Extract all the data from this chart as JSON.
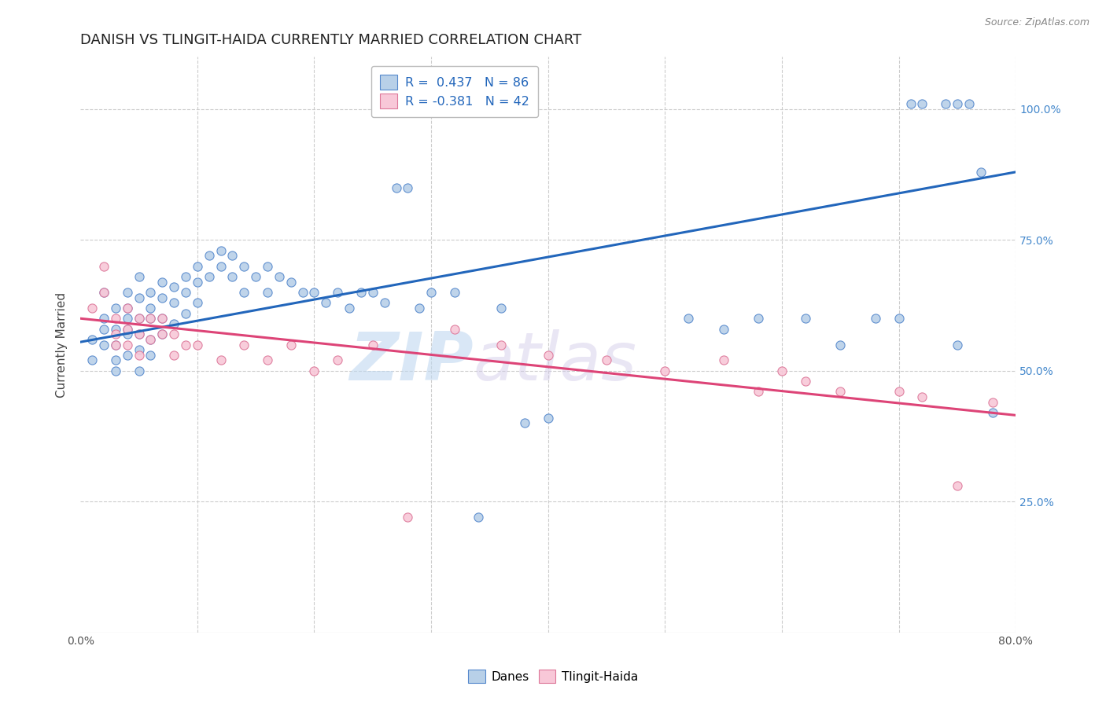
{
  "title": "DANISH VS TLINGIT-HAIDA CURRENTLY MARRIED CORRELATION CHART",
  "source": "Source: ZipAtlas.com",
  "ylabel": "Currently Married",
  "xlim": [
    0.0,
    0.8
  ],
  "ylim": [
    0.0,
    1.1
  ],
  "xticks": [
    0.0,
    0.1,
    0.2,
    0.3,
    0.4,
    0.5,
    0.6,
    0.7,
    0.8
  ],
  "xticklabels": [
    "0.0%",
    "",
    "",
    "",
    "",
    "",
    "",
    "",
    "80.0%"
  ],
  "yticks": [
    0.0,
    0.25,
    0.5,
    0.75,
    1.0
  ],
  "yticklabels_right": [
    "",
    "25.0%",
    "50.0%",
    "75.0%",
    "100.0%"
  ],
  "danes_R": 0.437,
  "danes_N": 86,
  "tlingit_R": -0.381,
  "tlingit_N": 42,
  "danes_color": "#b8d0e8",
  "danes_edge_color": "#5588cc",
  "danes_line_color": "#2266bb",
  "tlingit_color": "#f8c8d8",
  "tlingit_edge_color": "#dd7799",
  "tlingit_line_color": "#dd4477",
  "danes_x": [
    0.01,
    0.01,
    0.02,
    0.02,
    0.02,
    0.02,
    0.03,
    0.03,
    0.03,
    0.03,
    0.03,
    0.04,
    0.04,
    0.04,
    0.04,
    0.04,
    0.04,
    0.05,
    0.05,
    0.05,
    0.05,
    0.05,
    0.05,
    0.06,
    0.06,
    0.06,
    0.06,
    0.06,
    0.07,
    0.07,
    0.07,
    0.07,
    0.08,
    0.08,
    0.08,
    0.09,
    0.09,
    0.09,
    0.1,
    0.1,
    0.1,
    0.11,
    0.11,
    0.12,
    0.12,
    0.13,
    0.13,
    0.14,
    0.14,
    0.15,
    0.16,
    0.16,
    0.17,
    0.18,
    0.19,
    0.2,
    0.21,
    0.22,
    0.23,
    0.24,
    0.25,
    0.26,
    0.27,
    0.28,
    0.29,
    0.3,
    0.32,
    0.34,
    0.36,
    0.38,
    0.4,
    0.52,
    0.55,
    0.58,
    0.62,
    0.65,
    0.68,
    0.7,
    0.71,
    0.72,
    0.74,
    0.75,
    0.75,
    0.76,
    0.77,
    0.78
  ],
  "danes_y": [
    0.56,
    0.52,
    0.58,
    0.55,
    0.6,
    0.65,
    0.58,
    0.62,
    0.55,
    0.52,
    0.5,
    0.6,
    0.57,
    0.53,
    0.65,
    0.62,
    0.58,
    0.64,
    0.6,
    0.57,
    0.54,
    0.5,
    0.68,
    0.65,
    0.62,
    0.6,
    0.56,
    0.53,
    0.67,
    0.64,
    0.6,
    0.57,
    0.66,
    0.63,
    0.59,
    0.68,
    0.65,
    0.61,
    0.7,
    0.67,
    0.63,
    0.72,
    0.68,
    0.73,
    0.7,
    0.72,
    0.68,
    0.7,
    0.65,
    0.68,
    0.7,
    0.65,
    0.68,
    0.67,
    0.65,
    0.65,
    0.63,
    0.65,
    0.62,
    0.65,
    0.65,
    0.63,
    0.85,
    0.85,
    0.62,
    0.65,
    0.65,
    0.22,
    0.62,
    0.4,
    0.41,
    0.6,
    0.58,
    0.6,
    0.6,
    0.55,
    0.6,
    0.6,
    1.01,
    1.01,
    1.01,
    1.01,
    0.55,
    1.01,
    0.88,
    0.42
  ],
  "tlingit_x": [
    0.01,
    0.02,
    0.02,
    0.03,
    0.03,
    0.03,
    0.04,
    0.04,
    0.04,
    0.05,
    0.05,
    0.05,
    0.06,
    0.06,
    0.07,
    0.07,
    0.08,
    0.08,
    0.09,
    0.1,
    0.12,
    0.14,
    0.16,
    0.18,
    0.2,
    0.22,
    0.25,
    0.28,
    0.32,
    0.36,
    0.4,
    0.45,
    0.5,
    0.55,
    0.58,
    0.6,
    0.62,
    0.65,
    0.7,
    0.72,
    0.75,
    0.78
  ],
  "tlingit_y": [
    0.62,
    0.65,
    0.7,
    0.6,
    0.57,
    0.55,
    0.62,
    0.58,
    0.55,
    0.6,
    0.57,
    0.53,
    0.6,
    0.56,
    0.6,
    0.57,
    0.57,
    0.53,
    0.55,
    0.55,
    0.52,
    0.55,
    0.52,
    0.55,
    0.5,
    0.52,
    0.55,
    0.22,
    0.58,
    0.55,
    0.53,
    0.52,
    0.5,
    0.52,
    0.46,
    0.5,
    0.48,
    0.46,
    0.46,
    0.45,
    0.28,
    0.44
  ],
  "watermark_zip": "ZIP",
  "watermark_atlas": "atlas",
  "legend_danes_label": "Danes",
  "legend_tlingit_label": "Tlingit-Haida",
  "background_color": "#ffffff",
  "grid_color": "#cccccc",
  "title_fontsize": 13,
  "axis_label_fontsize": 11,
  "tick_fontsize": 10,
  "right_tick_color": "#4488cc"
}
